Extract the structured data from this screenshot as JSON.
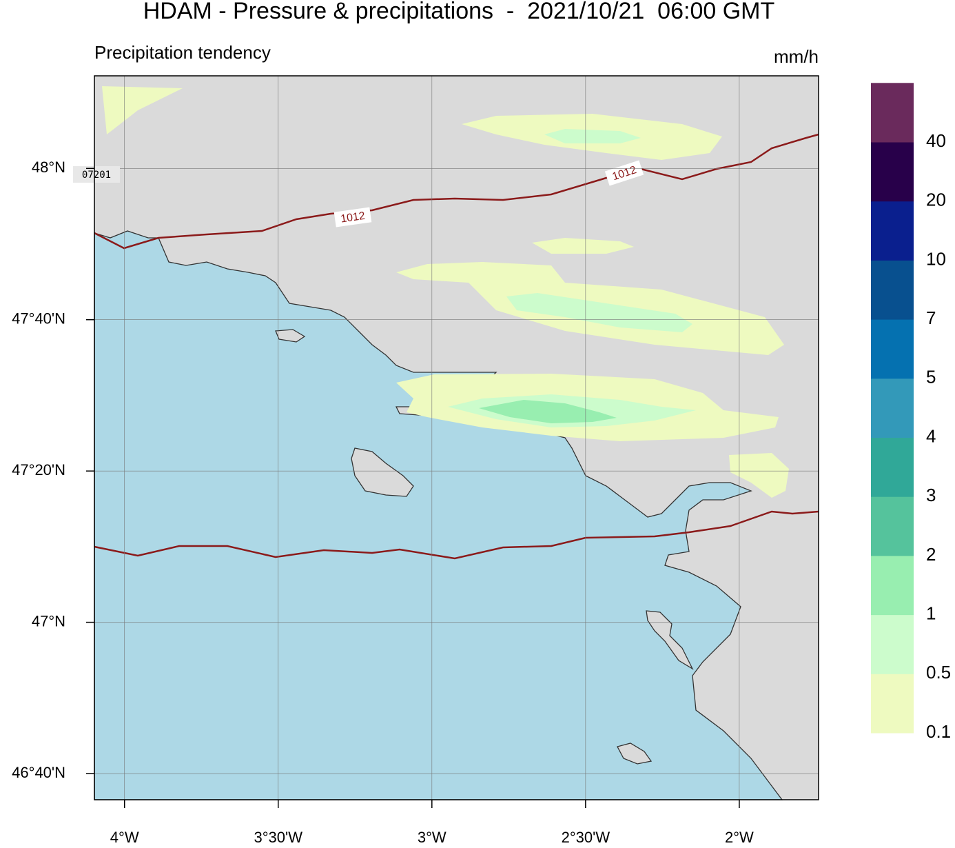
{
  "header": {
    "title": "HDAM - Pressure & precipitations  -  2021/10/21  06:00 GMT",
    "subtitle": "Precipitation tendency",
    "unit": "mm/h"
  },
  "map": {
    "xlim": [
      -4.098,
      -1.742
    ],
    "ylim": [
      46.609,
      48.204
    ],
    "xticks": [
      {
        "value": -4,
        "label": "4°W"
      },
      {
        "value": -3.5,
        "label": "3°30'W"
      },
      {
        "value": -3,
        "label": "3°W"
      },
      {
        "value": -2.5,
        "label": "2°30'W"
      },
      {
        "value": -2,
        "label": "2°W"
      }
    ],
    "yticks": [
      {
        "value": 48,
        "label": "48°N"
      },
      {
        "value": 47.6667,
        "label": "47°40'N"
      },
      {
        "value": 47.3333,
        "label": "47°20'N"
      },
      {
        "value": 47,
        "label": "47°N"
      },
      {
        "value": 46.6667,
        "label": "46°40'N"
      }
    ],
    "grid": true,
    "station": "07201",
    "isobar_labels": [
      "1012",
      "1012"
    ]
  },
  "colorbar": {
    "levels": [
      0.1,
      0.5,
      1,
      2,
      3,
      4,
      5,
      7,
      10,
      20,
      40
    ],
    "colors": [
      "#eefac0",
      "#ccfccc",
      "#98eeb0",
      "#55c39c",
      "#30a898",
      "#3399b9",
      "#0571b0",
      "#08508f",
      "#0a1f8e",
      "#28004a",
      "#6a2a5c"
    ]
  }
}
